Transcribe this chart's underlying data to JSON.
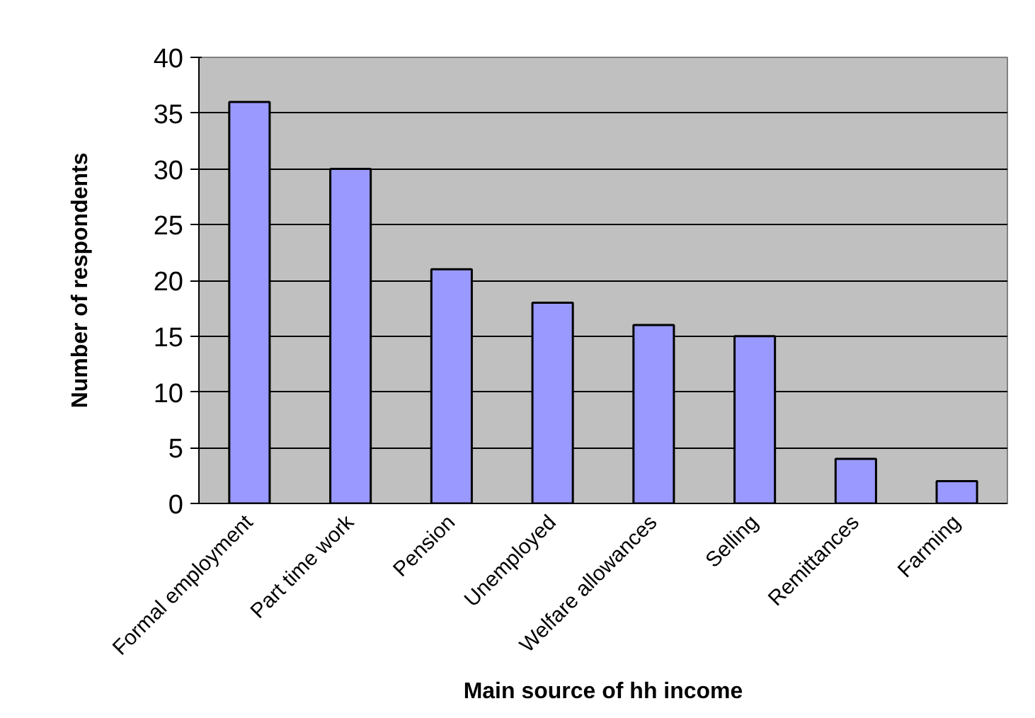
{
  "chart_data": {
    "type": "bar",
    "xlabel": "Main source of hh income",
    "ylabel": "Number of respondents",
    "categories": [
      "Formal employment",
      "Part time work",
      "Pension",
      "Unemployed",
      "Welfare allowances",
      "Selling",
      "Remittances",
      "Farming"
    ],
    "values": [
      36,
      30,
      21,
      18,
      16,
      15,
      4,
      2
    ],
    "color": "#9999ff",
    "ylim": [
      0,
      40
    ],
    "yticks": [
      0,
      5,
      10,
      15,
      20,
      25,
      30,
      35,
      40
    ],
    "grid": "y"
  }
}
